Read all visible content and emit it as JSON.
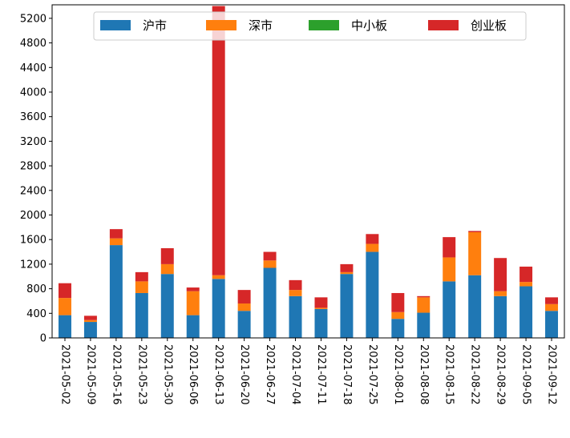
{
  "chart_data": {
    "type": "bar",
    "stacked": true,
    "categories": [
      "2021-05-02",
      "2021-05-09",
      "2021-05-16",
      "2021-05-23",
      "2021-05-30",
      "2021-06-06",
      "2021-06-13",
      "2021-06-20",
      "2021-06-27",
      "2021-07-04",
      "2021-07-11",
      "2021-07-18",
      "2021-07-25",
      "2021-08-01",
      "2021-08-08",
      "2021-08-15",
      "2021-08-22",
      "2021-08-29",
      "2021-09-05",
      "2021-09-12"
    ],
    "series": [
      {
        "name": "沪市",
        "color": "#1f77b4",
        "values": [
          370,
          260,
          1510,
          730,
          1040,
          370,
          960,
          440,
          1140,
          680,
          470,
          1040,
          1400,
          310,
          410,
          920,
          1020,
          680,
          840,
          440
        ]
      },
      {
        "name": "深市",
        "color": "#ff7f0e",
        "values": [
          280,
          30,
          110,
          190,
          160,
          390,
          60,
          120,
          120,
          100,
          20,
          30,
          130,
          110,
          250,
          390,
          700,
          80,
          70,
          110
        ]
      },
      {
        "name": "中小板",
        "color": "#2ca02c",
        "values": [
          0,
          0,
          0,
          0,
          0,
          0,
          0,
          0,
          0,
          0,
          0,
          0,
          0,
          0,
          0,
          0,
          0,
          0,
          0,
          0
        ]
      },
      {
        "name": "创业板",
        "color": "#d62728",
        "values": [
          240,
          70,
          150,
          150,
          260,
          60,
          4380,
          220,
          140,
          160,
          170,
          130,
          160,
          310,
          20,
          330,
          20,
          540,
          250,
          110
        ]
      }
    ],
    "yticks": [
      0,
      400,
      800,
      1200,
      1600,
      2000,
      2400,
      2800,
      3200,
      3600,
      4000,
      4400,
      4800,
      5200
    ],
    "ylim": [
      0,
      5420
    ],
    "legend": "top-center",
    "grid": false
  }
}
